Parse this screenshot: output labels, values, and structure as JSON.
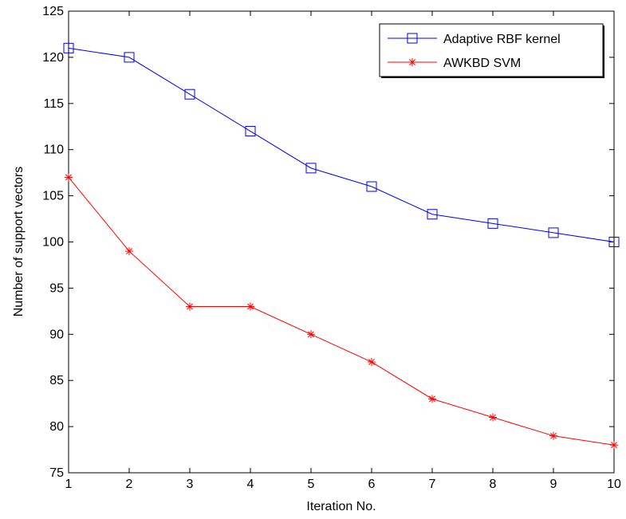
{
  "chart_data": {
    "type": "line",
    "xlabel": "Iteration No.",
    "ylabel": "Number of support vectors",
    "xlim": [
      1,
      10
    ],
    "ylim": [
      75,
      125
    ],
    "xticks": [
      1,
      2,
      3,
      4,
      5,
      6,
      7,
      8,
      9,
      10
    ],
    "yticks": [
      75,
      80,
      85,
      90,
      95,
      100,
      105,
      110,
      115,
      120,
      125
    ],
    "x": [
      1,
      2,
      3,
      4,
      5,
      6,
      7,
      8,
      9,
      10
    ],
    "grid": false,
    "legend_position": "top-right",
    "series": [
      {
        "name": "Adaptive RBF kernel",
        "values": [
          121,
          120,
          116,
          112,
          108,
          106,
          103,
          102,
          101,
          100
        ],
        "color": "#0000ff",
        "marker": "square"
      },
      {
        "name": "AWKBD SVM",
        "values": [
          107,
          99,
          93,
          93,
          90,
          87,
          83,
          81,
          79,
          78
        ],
        "color": "#ff0000",
        "marker": "asterisk"
      }
    ]
  }
}
